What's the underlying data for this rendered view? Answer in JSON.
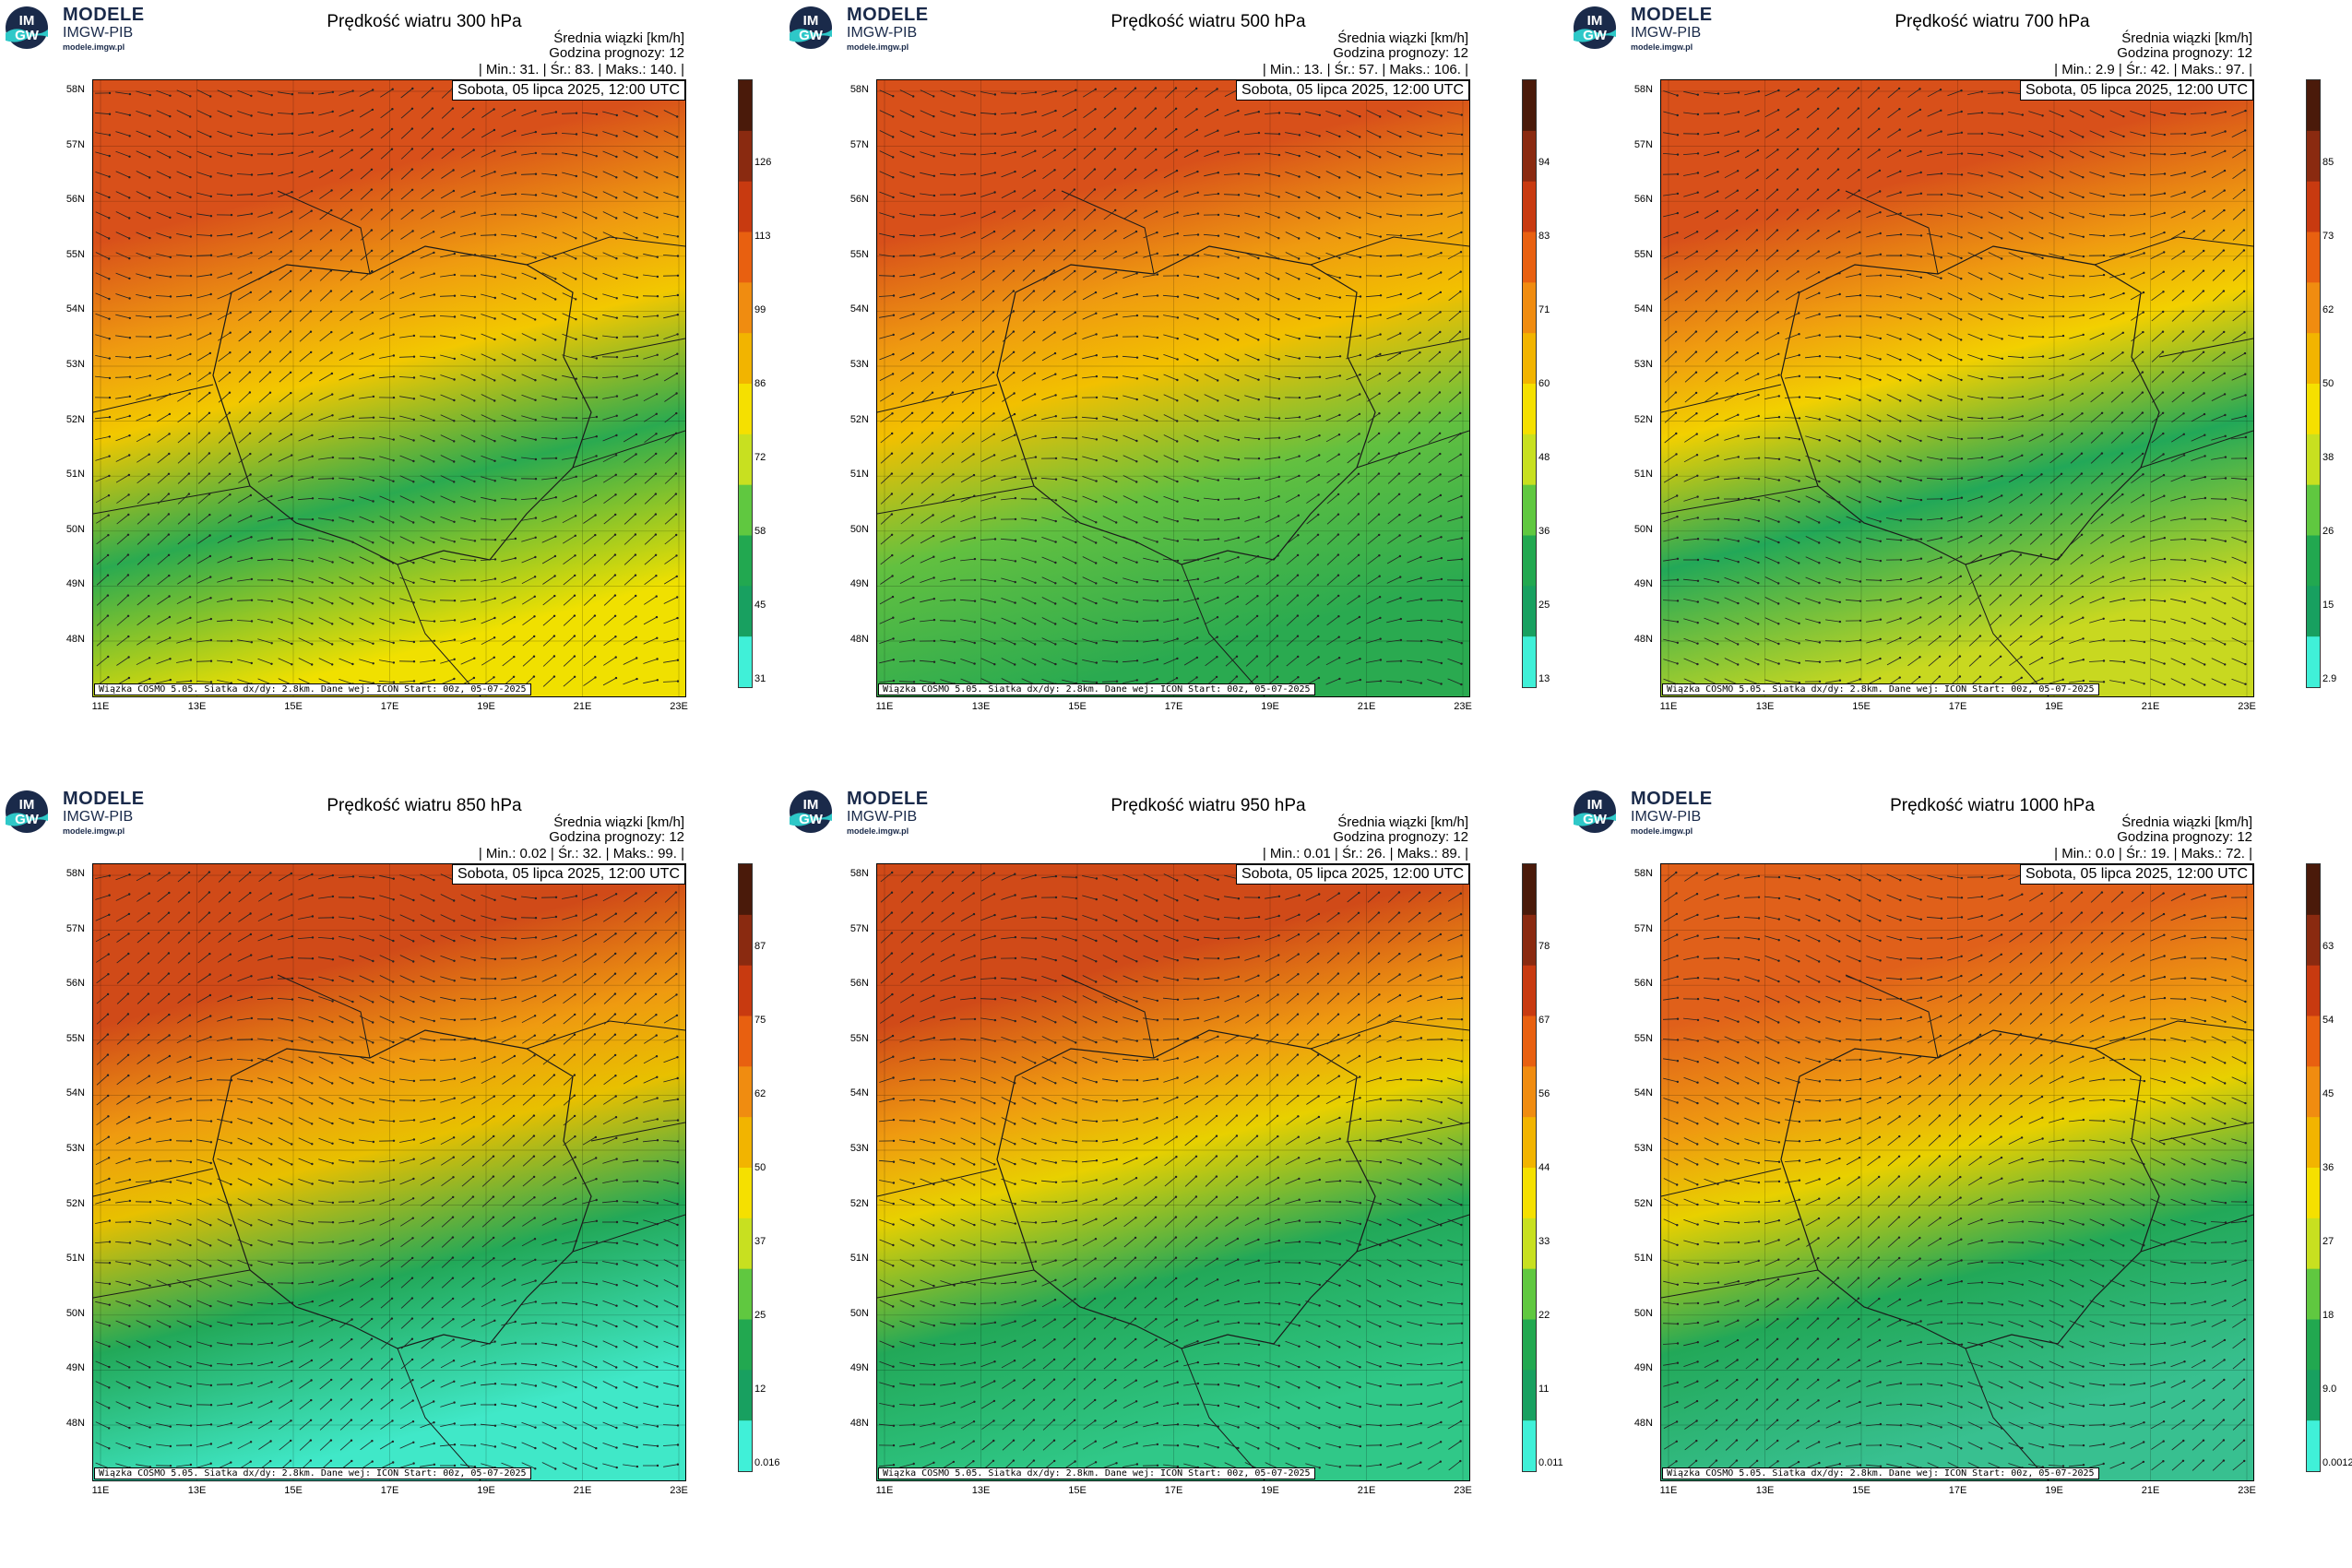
{
  "brand": {
    "name": "MODELE",
    "org": "IMGW-PIB",
    "url": "modele.imgw.pl",
    "logo_letters_top": "IM",
    "logo_letters_bottom": "GW"
  },
  "common": {
    "info_line1": "Średnia wiązki [km/h]",
    "info_line2": "Godzina prognozy: 12",
    "date": "Sobota, 05 lipca 2025, 12:00 UTC",
    "footer": "Wiązka COSMO 5.05. Siatka dx/dy: 2.8km. Dane wej: ICON Start: 00z, 05-07-2025",
    "lat_labels": [
      "58N",
      "57N",
      "56N",
      "55N",
      "54N",
      "53N",
      "52N",
      "51N",
      "50N",
      "49N",
      "48N"
    ],
    "lon_labels": [
      "11E",
      "13E",
      "15E",
      "17E",
      "19E",
      "21E",
      "23E"
    ],
    "colors": {
      "green": "#1fb050",
      "yellow": "#f5e400",
      "orange": "#ef9a10",
      "red": "#d84010",
      "darkred": "#4a1a0a",
      "cyan": "#40f0d8"
    }
  },
  "panels": [
    {
      "title": "Prędkość wiatru 300 hPa",
      "min_label": "| Min.:",
      "min": "31.",
      "avg_label": "| Śr.:",
      "avg": "83.",
      "max_label": "| Maks.:",
      "max": "140.",
      "end": "|",
      "cbar": [
        "126",
        "113",
        "99",
        "86",
        "72",
        "58",
        "45",
        "31"
      ],
      "fill": {
        "band_top": "#d8501a",
        "mid": "#f2c800",
        "low": "#2aaa50",
        "bottom": "#f0e000"
      }
    },
    {
      "title": "Prędkość wiatru 500 hPa",
      "min_label": "| Min.:",
      "min": "13.",
      "avg_label": "| Śr.:",
      "avg": "57.",
      "max_label": "| Maks.:",
      "max": "106.",
      "end": "|",
      "cbar": [
        "94",
        "83",
        "71",
        "60",
        "48",
        "36",
        "25",
        "13"
      ],
      "fill": {
        "band_top": "#d8501a",
        "mid": "#f2c000",
        "low": "#62c040",
        "bottom": "#2aaa50"
      }
    },
    {
      "title": "Prędkość wiatru 700 hPa",
      "min_label": "| Min.:",
      "min": "2.9",
      "avg_label": "| Śr.:",
      "avg": "42.",
      "max_label": "| Maks.:",
      "max": "97.",
      "end": "|",
      "cbar": [
        "85",
        "73",
        "62",
        "50",
        "38",
        "26",
        "15",
        "2.9"
      ],
      "fill": {
        "band_top": "#d8501a",
        "mid": "#f2d000",
        "low": "#22a858",
        "bottom": "#c8d820"
      }
    },
    {
      "title": "Prędkość wiatru 850 hPa",
      "min_label": "| Min.:",
      "min": "0.02",
      "avg_label": "| Śr.:",
      "avg": "32.",
      "max_label": "| Maks.:",
      "max": "99.",
      "end": "|",
      "cbar": [
        "87",
        "75",
        "62",
        "50",
        "37",
        "25",
        "12",
        "0.016"
      ],
      "fill": {
        "band_top": "#d04a18",
        "mid": "#e8c000",
        "low": "#22a858",
        "bottom": "#40e8c8"
      }
    },
    {
      "title": "Prędkość wiatru 950 hPa",
      "min_label": "| Min.:",
      "min": "0.01",
      "avg_label": "| Śr.:",
      "avg": "26.",
      "max_label": "| Maks.:",
      "max": "89.",
      "end": "|",
      "cbar": [
        "78",
        "67",
        "56",
        "44",
        "33",
        "22",
        "11",
        "0.011"
      ],
      "fill": {
        "band_top": "#d04a18",
        "mid": "#e8d000",
        "low": "#22a858",
        "bottom": "#30c888"
      }
    },
    {
      "title": "Prędkość wiatru 1000 hPa",
      "min_label": "| Min.:",
      "min": "0.0",
      "avg_label": "| Śr.:",
      "avg": "19.",
      "max_label": "| Maks.:",
      "max": "72.",
      "end": "|",
      "cbar": [
        "63",
        "54",
        "45",
        "36",
        "27",
        "18",
        "9.0",
        "0.0012"
      ],
      "fill": {
        "band_top": "#e0601a",
        "mid": "#e8d000",
        "low": "#22a858",
        "bottom": "#38c090"
      }
    }
  ]
}
